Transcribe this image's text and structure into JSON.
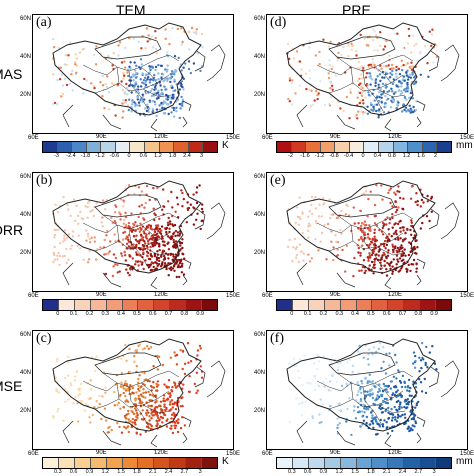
{
  "columns": [
    "TEM",
    "PRE"
  ],
  "rows": [
    {
      "label": "MAS"
    },
    {
      "label": "ORR"
    },
    {
      "label": "MSE"
    }
  ],
  "panels": [
    {
      "label": "(a)",
      "col": 0,
      "row": 0,
      "palette": "bluered"
    },
    {
      "label": "(d)",
      "col": 1,
      "row": 0,
      "palette": "redblue"
    },
    {
      "label": "(b)",
      "col": 0,
      "row": 1,
      "palette": "reds"
    },
    {
      "label": "(e)",
      "col": 1,
      "row": 1,
      "palette": "reds"
    },
    {
      "label": "(c)",
      "col": 0,
      "row": 2,
      "palette": "oranges"
    },
    {
      "label": "(f)",
      "col": 1,
      "row": 2,
      "palette": "blues"
    }
  ],
  "lat_labels": [
    "60N",
    "40N",
    "20N"
  ],
  "lon_labels_top": [
    "90E",
    "120E"
  ],
  "lon_labels_edge": [
    "60E",
    "150E"
  ],
  "colorbars": [
    {
      "col": 0,
      "row": 0,
      "ticks": [
        "-3",
        "-2.4",
        "-1.8",
        "-1.2",
        "-0.6",
        "0",
        "0.6",
        "1.2",
        "1.8",
        "2.4",
        "3"
      ],
      "unit": "K",
      "colors": [
        "#1f3b8f",
        "#2f5fb0",
        "#4a86c8",
        "#7fb0d8",
        "#b8d4e8",
        "#e6eef4",
        "#f5e6c8",
        "#f4c48a",
        "#ee9450",
        "#e06030",
        "#c02818",
        "#9a1010"
      ]
    },
    {
      "col": 1,
      "row": 0,
      "ticks": [
        "-2",
        "-1.6",
        "-1.2",
        "-0.8",
        "-0.4",
        "0",
        "0.4",
        "0.8",
        "1.2",
        "1.6",
        "2"
      ],
      "unit": "mm",
      "colors": [
        "#b01010",
        "#d03a22",
        "#e8703a",
        "#f2a068",
        "#f7cfa8",
        "#f8eddc",
        "#e2eef7",
        "#b6d5ec",
        "#82b6de",
        "#4f90cc",
        "#2a66b2",
        "#1a3f8c"
      ]
    },
    {
      "col": 0,
      "row": 1,
      "ticks": [
        "0",
        "0.1",
        "0.2",
        "0.3",
        "0.4",
        "0.5",
        "0.6",
        "0.7",
        "0.8",
        "0.9"
      ],
      "unit": "",
      "colors": [
        "#1f2f8a",
        "#fbe8da",
        "#f9d2bb",
        "#f6b899",
        "#f29c78",
        "#ec7f5a",
        "#e2623f",
        "#d2452c",
        "#bb2b1e",
        "#9e1414",
        "#7c0a0a"
      ]
    },
    {
      "col": 1,
      "row": 1,
      "ticks": [
        "0",
        "0.1",
        "0.2",
        "0.3",
        "0.4",
        "0.5",
        "0.6",
        "0.7",
        "0.8",
        "0.9"
      ],
      "unit": "",
      "colors": [
        "#1f2f8a",
        "#fbe8da",
        "#f9d2bb",
        "#f6b899",
        "#f29c78",
        "#ec7f5a",
        "#e2623f",
        "#d2452c",
        "#bb2b1e",
        "#9e1414",
        "#7c0a0a"
      ]
    },
    {
      "col": 0,
      "row": 2,
      "ticks": [
        "0.3",
        "0.6",
        "0.9",
        "1.2",
        "1.5",
        "1.8",
        "2.1",
        "2.4",
        "2.7",
        "3"
      ],
      "unit": "K",
      "colors": [
        "#fdf0d8",
        "#fbe1b6",
        "#f9cf92",
        "#f6ba6e",
        "#f3a34f",
        "#ee8a36",
        "#e46f26",
        "#d5531c",
        "#c03a16",
        "#a22212",
        "#80120e"
      ]
    },
    {
      "col": 1,
      "row": 2,
      "ticks": [
        "0.3",
        "0.6",
        "0.9",
        "1.2",
        "1.5",
        "1.8",
        "2.1",
        "2.4",
        "2.7",
        "3"
      ],
      "unit": "mm",
      "colors": [
        "#eaf3fa",
        "#d6e8f5",
        "#bfdaee",
        "#a5cae6",
        "#88b8dd",
        "#6ba4d2",
        "#4f8ec6",
        "#3878b8",
        "#2462a6",
        "#184e92",
        "#0f3b7a"
      ]
    }
  ],
  "palettes": {
    "bluered": [
      "#2a4fa6",
      "#4f86c6",
      "#8fbbe0",
      "#c9dff0",
      "#f6cfa0",
      "#eb8f52",
      "#c83a22"
    ],
    "redblue": [
      "#c83a22",
      "#ee9a62",
      "#f8d6b6",
      "#d8e8f4",
      "#9cc4e4",
      "#5592cb",
      "#2a5ea8"
    ],
    "reds": [
      "#f7c6ac",
      "#ef9674",
      "#e1624a",
      "#cc3a2c",
      "#ad1f1a",
      "#8a1010"
    ],
    "oranges": [
      "#fbdcae",
      "#f6b470",
      "#ee8f40",
      "#e0702a",
      "#c8521c",
      "#e23a20"
    ],
    "blues": [
      "#e2eef8",
      "#b8d6ee",
      "#8abbe0",
      "#5a9ad0",
      "#3478bc",
      "#1f58a0"
    ]
  }
}
